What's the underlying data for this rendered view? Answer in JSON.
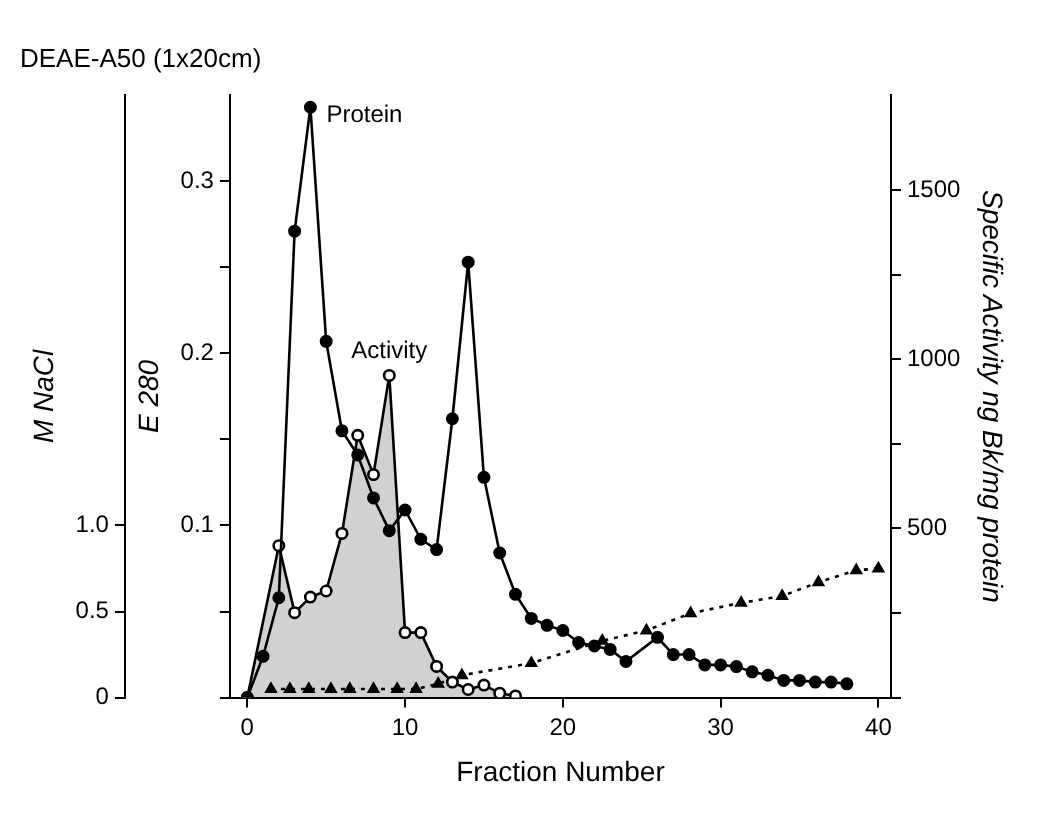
{
  "chart_data": {
    "type": "line",
    "title": "DEAE-A50 (1x20cm)",
    "xlabel": "Fraction Number",
    "ylabel": "E 280",
    "y2label": "Specific Activity ng Bk/mg protein",
    "y3label": "M NaCl",
    "xlim": [
      -1.1,
      40.8
    ],
    "xticks": [
      0,
      10,
      20,
      30,
      40
    ],
    "ylim": [
      0,
      0.35
    ],
    "yticks": [
      {
        "value": 0,
        "label": null
      },
      {
        "value": 0.05,
        "label": null
      },
      0.1,
      {
        "value": 0.15,
        "label": null
      },
      0.2,
      {
        "value": 0.25,
        "label": null
      },
      0.3
    ],
    "y2lim": [
      0,
      1780
    ],
    "y2ticks": [
      {
        "value": 0,
        "label": null
      },
      {
        "value": 250,
        "label": null
      },
      500,
      {
        "value": 750,
        "label": null
      },
      1000,
      {
        "value": 1250,
        "label": null
      },
      1500
    ],
    "y3lim": [
      0,
      3.5
    ],
    "y3ticks": [
      0,
      0.5,
      {
        "value": 1,
        "label": "1.0"
      }
    ],
    "grid": false,
    "legend": false,
    "series": [
      {
        "name": "Protein",
        "color": "#000000",
        "marker": "circle",
        "line_style": "solid",
        "x": [
          0,
          1,
          2,
          3,
          4,
          5,
          6,
          7,
          8,
          9,
          10,
          11,
          12,
          13,
          14,
          15,
          16,
          17,
          18,
          19,
          20,
          21,
          22,
          23,
          24,
          26,
          27,
          28,
          29,
          30,
          31,
          32,
          33,
          34,
          35,
          36,
          37,
          38
        ],
        "values": [
          0,
          0.024,
          0.058,
          0.271,
          0.343,
          0.207,
          0.155,
          0.141,
          0.116,
          0.097,
          0.109,
          0.092,
          0.086,
          0.162,
          0.253,
          0.128,
          0.084,
          0.06,
          0.046,
          0.042,
          0.039,
          0.032,
          0.03,
          0.028,
          0.021,
          0.035,
          0.025,
          0.025,
          0.019,
          0.019,
          0.018,
          0.015,
          0.013,
          0.01,
          0.01,
          0.009,
          0.009,
          0.008
        ]
      },
      {
        "name": "Activity",
        "type": "area",
        "axis": "y2",
        "color": "#000000",
        "marker": "circle",
        "line_style": "solid",
        "x": [
          0,
          2,
          3,
          4,
          5,
          6,
          7,
          8,
          9,
          10,
          11,
          12,
          13,
          14,
          15,
          16,
          17
        ],
        "values": [
          0,
          449,
          251,
          297,
          315,
          485,
          775,
          659,
          952,
          192,
          192,
          92,
          46,
          24,
          37,
          13,
          5
        ]
      },
      {
        "type": "line",
        "axis": "y3",
        "color": "#000000",
        "marker": "triangle",
        "line_style": "dotted",
        "x": [
          1.5,
          2.7,
          3.9,
          5.3,
          6.5,
          8,
          9.5,
          10.7,
          12.1,
          13.6,
          18,
          22.5,
          25.3,
          28.1,
          31.3,
          33.9,
          36.2,
          38.6,
          40
        ],
        "values": [
          0.05,
          0.05,
          0.05,
          0.05,
          0.05,
          0.05,
          0.05,
          0.05,
          0.08,
          0.13,
          0.2,
          0.33,
          0.39,
          0.49,
          0.55,
          0.59,
          0.67,
          0.74,
          0.75
        ]
      }
    ]
  }
}
